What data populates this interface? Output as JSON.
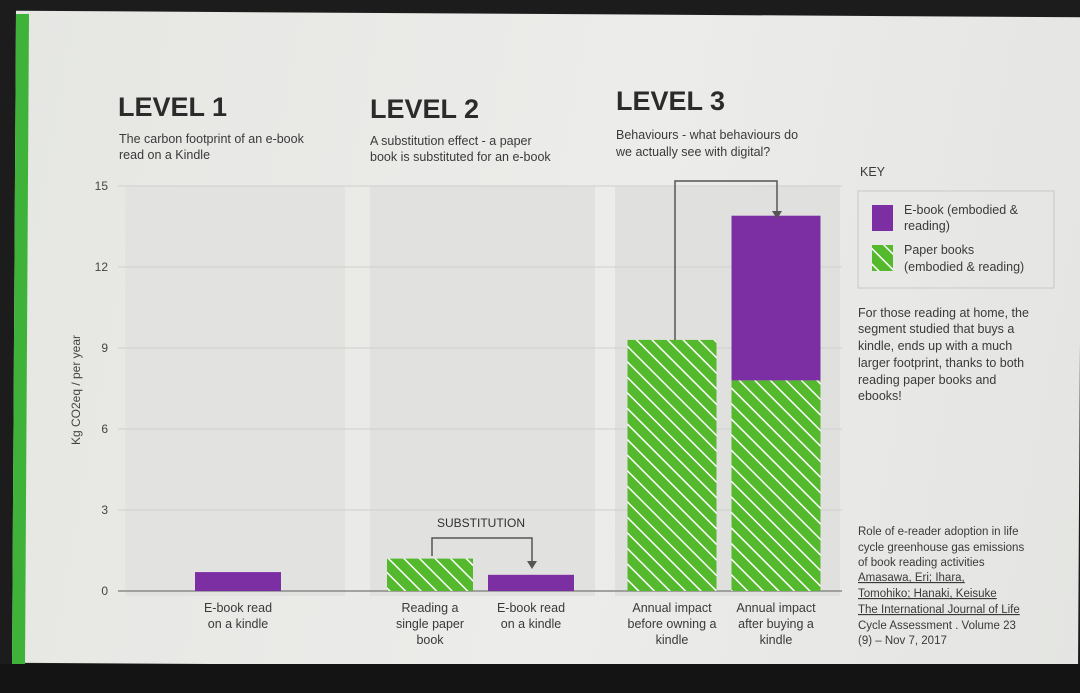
{
  "levels": [
    {
      "title": "LEVEL 1",
      "desc": [
        "The carbon footprint of an e-book",
        "read on a Kindle"
      ]
    },
    {
      "title": "LEVEL 2",
      "desc": [
        "A substitution effect - a paper",
        "book is substituted for an e-book"
      ]
    },
    {
      "title": "LEVEL 3",
      "desc": [
        "Behaviours - what behaviours do",
        "we actually see with digital?"
      ]
    }
  ],
  "substitution_label": "SUBSTITUTION",
  "key": {
    "title": "KEY",
    "ebook": [
      "E-book (embodied &",
      "reading)"
    ],
    "paper": [
      "Paper books",
      "(embodied & reading)"
    ]
  },
  "note": [
    "For those reading at home, the",
    "segment studied that buys a",
    "kindle, ends up with a much",
    "larger footprint, thanks to both",
    "reading paper books and",
    "ebooks!"
  ],
  "reference": [
    "Role of e-reader adoption in life",
    "cycle greenhouse gas emissions",
    "of book reading activities",
    "Amasawa, Eri; Ihara,",
    "Tomohiko; Hanaki, Keisuke",
    "The International Journal of Life",
    "Cycle Assessment . Volume 23",
    "(9) – Nov 7, 2017"
  ],
  "colors": {
    "ebook": "#7b2fa3",
    "paper": "#55b92e",
    "hatch": "#ffffff",
    "accent": "#3fb23a"
  },
  "chart_data": {
    "type": "bar",
    "stacked": true,
    "ylabel": "Kg CO2eq / per year",
    "ylim": [
      0,
      15
    ],
    "yticks": [
      0,
      3,
      6,
      9,
      12,
      15
    ],
    "grid": true,
    "legend": "right",
    "categories": [
      [
        "E-book read",
        "on a kindle"
      ],
      [
        "Reading a",
        "single paper",
        "book"
      ],
      [
        "E-book read",
        "on a kindle"
      ],
      [
        "Annual impact",
        "before owning a",
        "kindle"
      ],
      [
        "Annual impact",
        "after buying a",
        "kindle"
      ]
    ],
    "series": [
      {
        "key": "paper",
        "values": [
          0,
          1.2,
          0,
          9.3,
          7.8
        ]
      },
      {
        "key": "ebook",
        "values": [
          0.7,
          0,
          0.6,
          0,
          6.1
        ]
      }
    ]
  }
}
